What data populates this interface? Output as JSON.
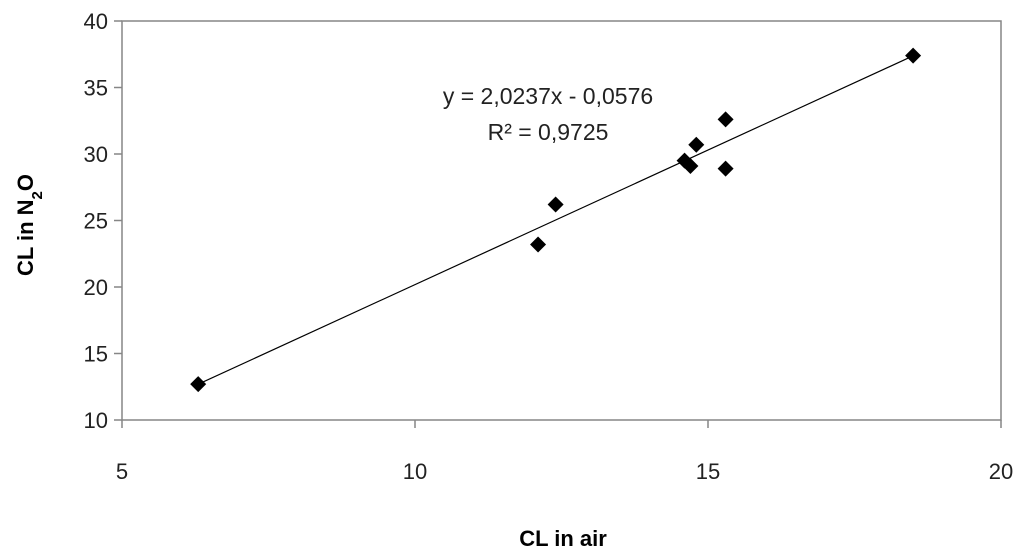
{
  "chart_data": {
    "type": "scatter",
    "title": "",
    "xlabel": "CL  in air",
    "ylabel": {
      "main": "CL  in N",
      "sub": "2",
      "tail": "O"
    },
    "xlim": [
      5,
      20
    ],
    "ylim": [
      10,
      40
    ],
    "xticks": [
      5,
      10,
      15,
      20
    ],
    "yticks": [
      10,
      15,
      20,
      25,
      30,
      35,
      40
    ],
    "grid": false,
    "legend": "none",
    "marker": "diamond",
    "marker_color": "#000000",
    "series": [
      {
        "points": [
          {
            "x": 6.3,
            "y": 12.7
          },
          {
            "x": 12.1,
            "y": 23.2
          },
          {
            "x": 12.4,
            "y": 26.2
          },
          {
            "x": 14.6,
            "y": 29.5
          },
          {
            "x": 14.7,
            "y": 29.1
          },
          {
            "x": 14.8,
            "y": 30.7
          },
          {
            "x": 15.3,
            "y": 32.6
          },
          {
            "x": 15.3,
            "y": 28.9
          },
          {
            "x": 18.5,
            "y": 37.4
          }
        ]
      }
    ],
    "trendline": {
      "slope": 2.0237,
      "intercept": -0.0576,
      "x_start": 6.3,
      "x_end": 18.5
    },
    "annotations": {
      "equation": "y = 2,0237x - 0,0576",
      "r2_label": "R² = 0,9725"
    }
  }
}
